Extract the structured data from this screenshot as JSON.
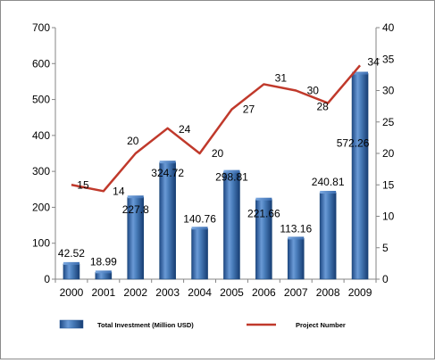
{
  "chart_data": {
    "type": "bar",
    "categories": [
      "2000",
      "2001",
      "2002",
      "2003",
      "2004",
      "2005",
      "2006",
      "2007",
      "2008",
      "2009"
    ],
    "series": [
      {
        "name": "Total Investment (Million USD)",
        "type": "bar",
        "axis": "left",
        "color": "#4a7ebb",
        "values": [
          42.52,
          18.99,
          227.8,
          324.72,
          140.76,
          298.81,
          221.66,
          113.16,
          240.81,
          572.26
        ]
      },
      {
        "name": "Project Number",
        "type": "line",
        "axis": "right",
        "color": "#c0392b",
        "values": [
          15,
          14,
          20,
          24,
          20,
          27,
          31,
          30,
          28,
          34
        ]
      }
    ],
    "ylim_left": [
      0,
      700
    ],
    "yticks_left": [
      0,
      100,
      200,
      300,
      400,
      500,
      600,
      700
    ],
    "ylim_right": [
      0,
      40
    ],
    "yticks_right": [
      0,
      5,
      10,
      15,
      20,
      25,
      30,
      35,
      40
    ],
    "grid": false,
    "legend": "bottom"
  },
  "legend": {
    "bar_label": "Total Investment (Million USD)",
    "line_label": "Project Number"
  }
}
